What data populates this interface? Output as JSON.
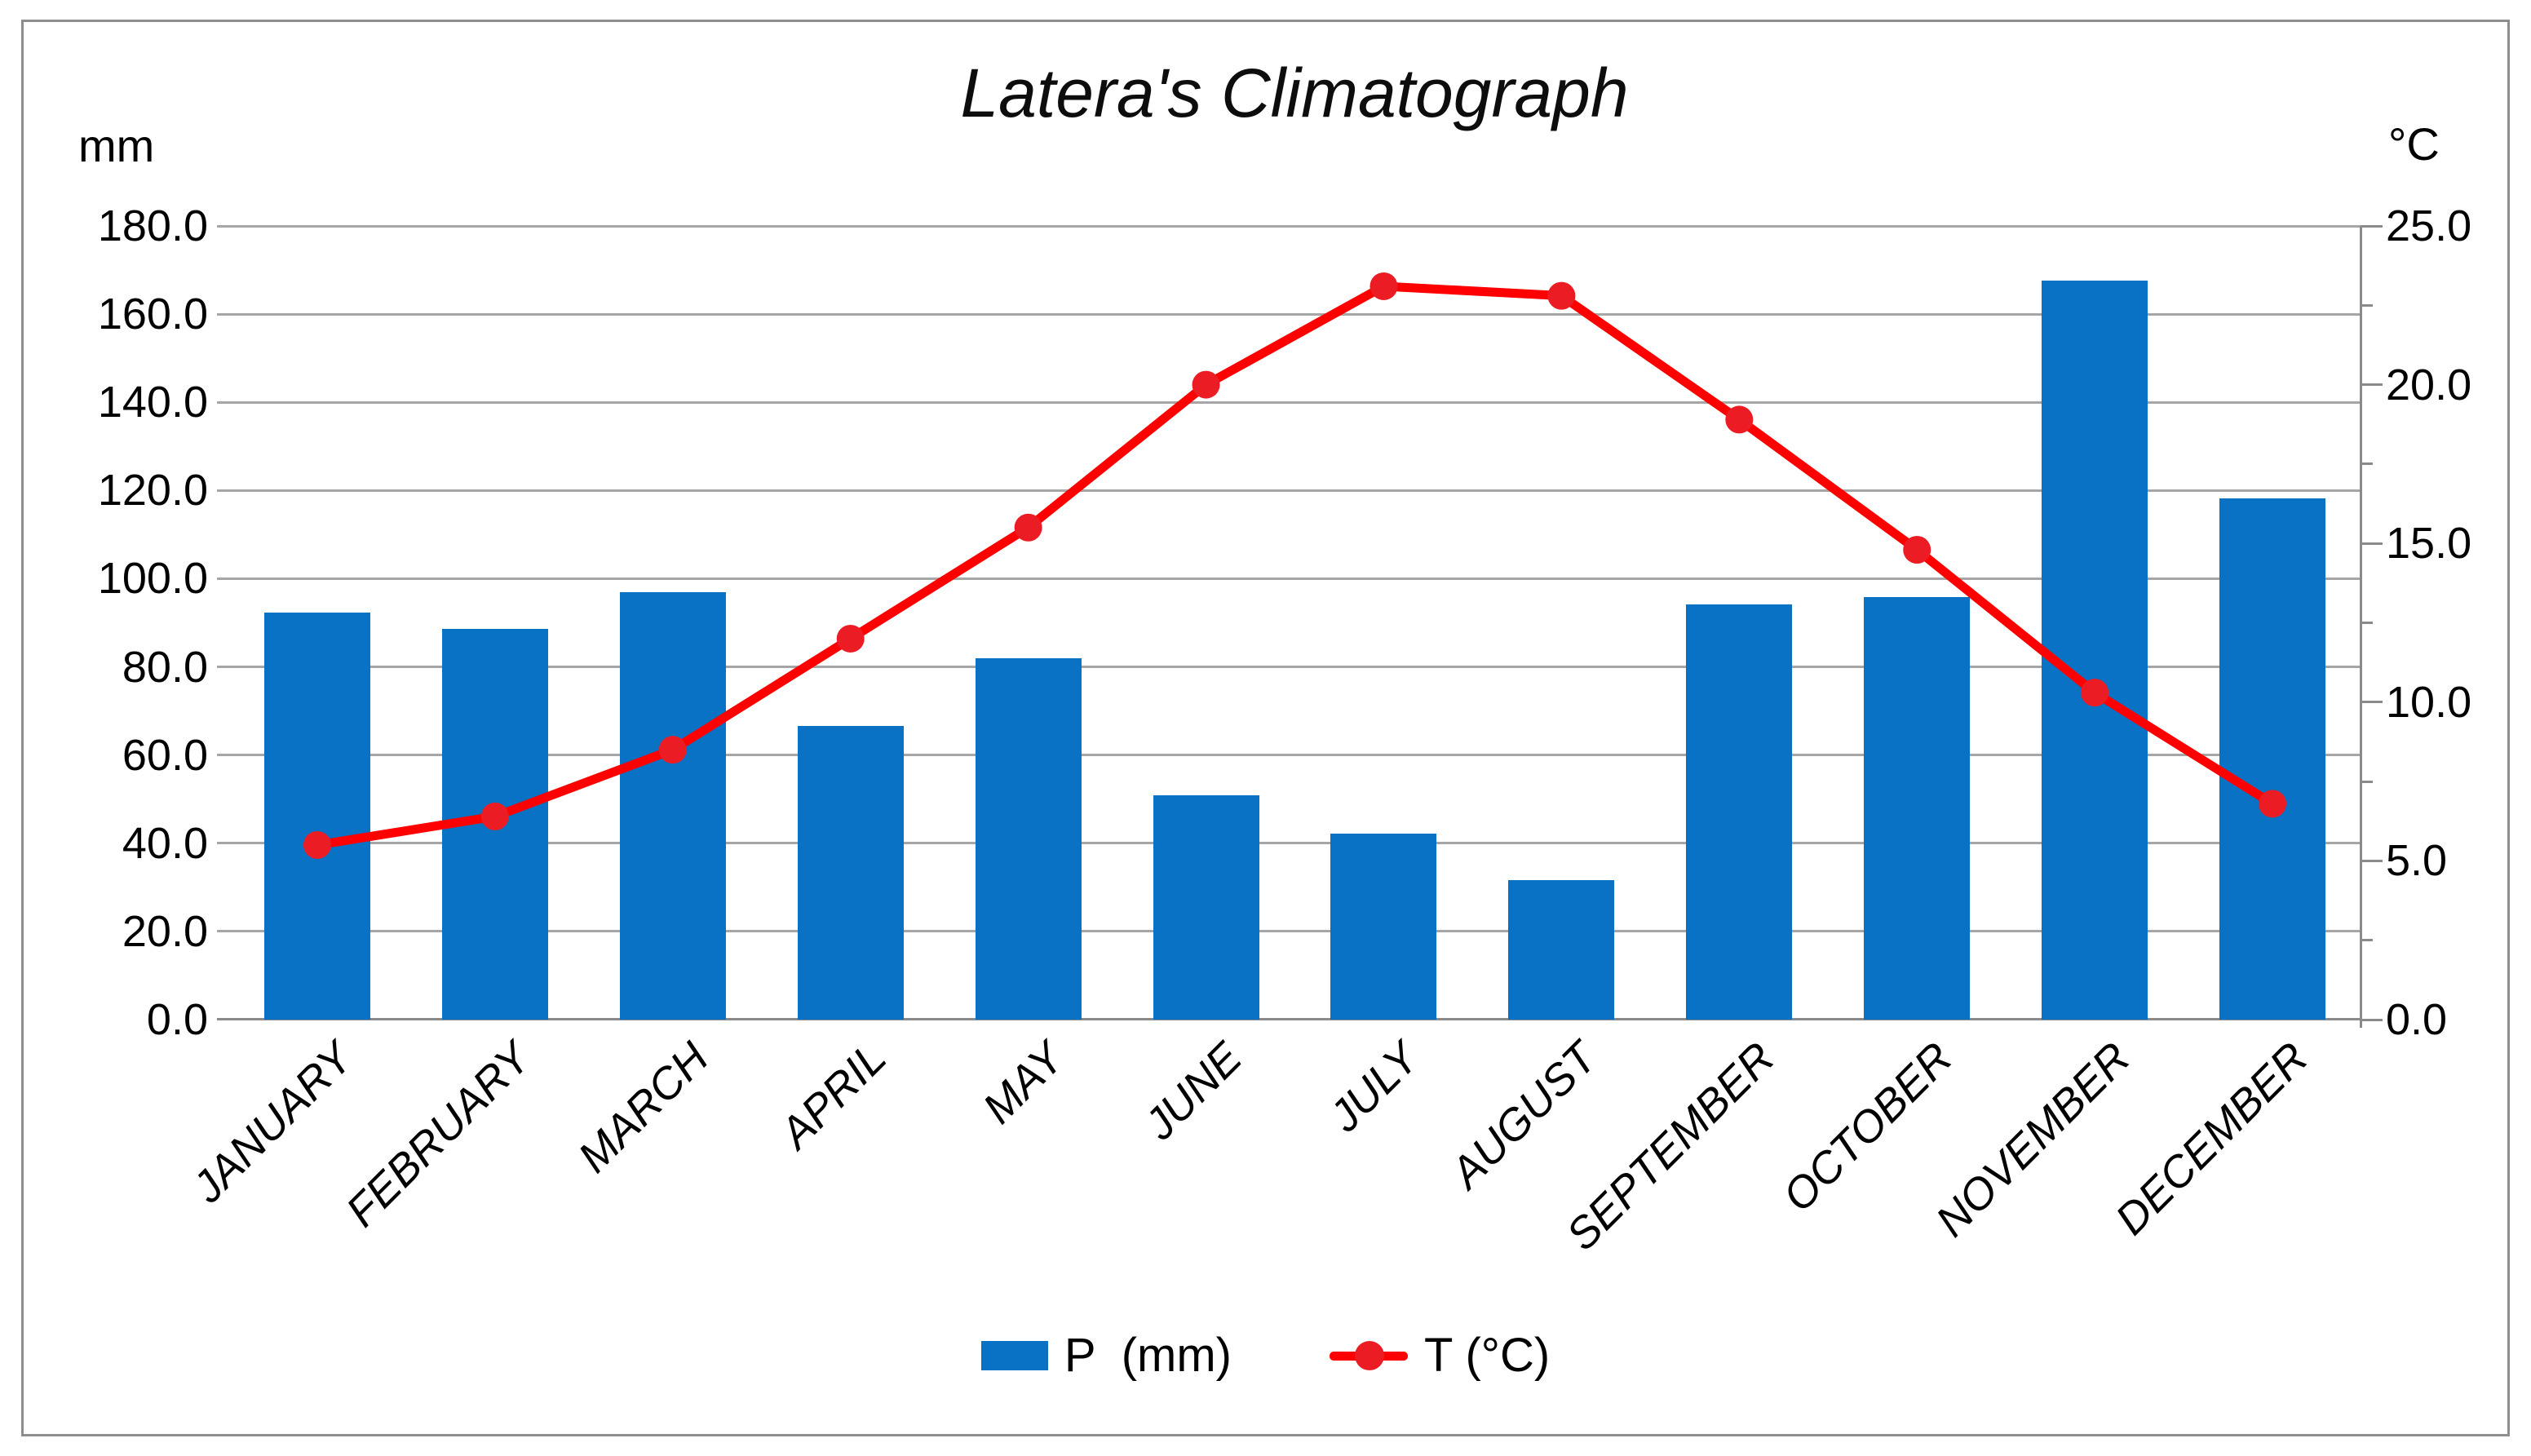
{
  "title": "Latera's Climatograph",
  "left_axis": {
    "unit": "mm",
    "max": 180,
    "step": 20,
    "ticks": [
      "180.0",
      "160.0",
      "140.0",
      "120.0",
      "100.0",
      "80.0",
      "60.0",
      "40.0",
      "20.0",
      "0.0"
    ]
  },
  "right_axis": {
    "unit": "°C",
    "max": 25,
    "step": 5,
    "ticks": [
      "25.0",
      "20.0",
      "15.0",
      "10.0",
      "5.0",
      "0.0"
    ]
  },
  "legend": {
    "precipitation_label": "P  (mm)",
    "temperature_label": "T (°C)"
  },
  "colors": {
    "bar_blue": "#0a72c4",
    "line_red": "#fe0000",
    "marker_red": "#ec1c24",
    "gridline_gray": "#a6a6a6",
    "axis_gray": "#8a8a8a"
  },
  "chart_data": {
    "type": "bar+line combo (climatograph)",
    "title": "Latera's Climatograph",
    "categories": [
      "JANUARY",
      "FEBRUARY",
      "MARCH",
      "APRIL",
      "MAY",
      "JUNE",
      "JULY",
      "AUGUST",
      "SEPTEMBER",
      "OCTOBER",
      "NOVEMBER",
      "DECEMBER"
    ],
    "series": [
      {
        "name": "P (mm)",
        "type": "bar",
        "axis": "left",
        "values": [
          92.4,
          88.7,
          97.0,
          66.6,
          82.0,
          50.8,
          42.1,
          31.6,
          94.1,
          95.9,
          167.7,
          118.3
        ]
      },
      {
        "name": "T (°C)",
        "type": "line",
        "axis": "right",
        "values": [
          5.5,
          6.4,
          8.5,
          12.0,
          15.5,
          20.0,
          23.1,
          22.8,
          18.9,
          14.8,
          10.3,
          6.8
        ]
      }
    ],
    "left_ylabel": "mm",
    "right_ylabel": "°C",
    "left_ylim": [
      0,
      180
    ],
    "right_ylim": [
      0,
      25
    ],
    "grid": true,
    "legend_position": "bottom"
  }
}
